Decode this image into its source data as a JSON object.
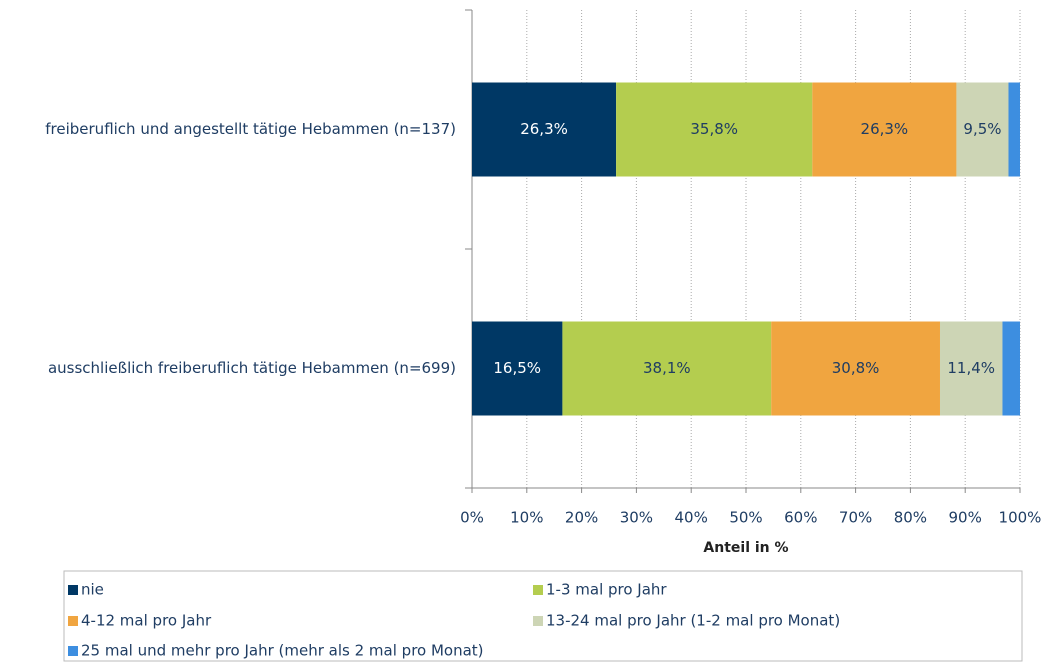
{
  "chart_data": {
    "type": "stacked-bar-horizontal",
    "categories": [
      "freiberuflich und angestellt tätige Hebammen (n=137)",
      "ausschließlich freiberuflich tätige Hebammen (n=699)"
    ],
    "series": [
      {
        "name": "nie",
        "color": "#003865",
        "values": [
          26.3,
          16.5
        ],
        "value_labels": [
          "26,3%",
          "16,5%"
        ]
      },
      {
        "name": "1-3 mal pro Jahr",
        "color": "#b4cd4f",
        "values": [
          35.8,
          38.1
        ],
        "value_labels": [
          "35,8%",
          "38,1%"
        ]
      },
      {
        "name": "4-12 mal pro Jahr",
        "color": "#f0a540",
        "values": [
          26.3,
          30.8
        ],
        "value_labels": [
          "26,3%",
          "30,8%"
        ]
      },
      {
        "name": "13-24 mal pro Jahr (1-2 mal pro Monat)",
        "color": "#cdd5b5",
        "values": [
          9.5,
          11.4
        ],
        "value_labels": [
          "9,5%",
          "11,4%"
        ]
      },
      {
        "name": "25 mal und mehr pro Jahr (mehr als 2 mal pro Monat)",
        "color": "#3d8ee0",
        "values": [
          2.1,
          3.2
        ],
        "value_labels": [
          null,
          null
        ]
      }
    ],
    "x_label": "Anteil in %",
    "xlim": [
      0,
      100
    ],
    "xticks": [
      {
        "value": 0,
        "label": "0%"
      },
      {
        "value": 10,
        "label": "10%"
      },
      {
        "value": 20,
        "label": "20%"
      },
      {
        "value": 30,
        "label": "30%"
      },
      {
        "value": 40,
        "label": "40%"
      },
      {
        "value": 50,
        "label": "50%"
      },
      {
        "value": 60,
        "label": "60%"
      },
      {
        "value": 70,
        "label": "70%"
      },
      {
        "value": 80,
        "label": "80%"
      },
      {
        "value": 90,
        "label": "90%"
      },
      {
        "value": 100,
        "label": "100%"
      }
    ],
    "grid": true,
    "legend": "bottom"
  }
}
